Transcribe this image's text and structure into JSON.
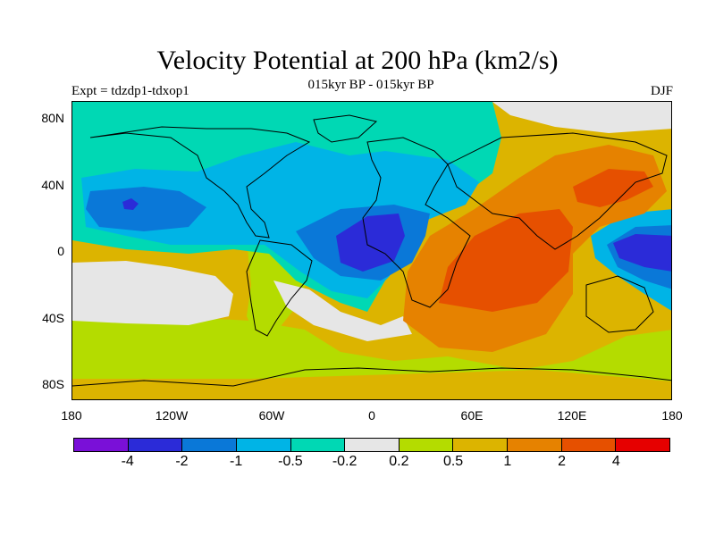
{
  "title": "Velocity Potential at 200 hPa (km2/s)",
  "subtitle": "015kyr BP - 015kyr BP",
  "experiment": "Expt = tdzdp1-tdxop1",
  "season": "DJF",
  "y_axis_labels": [
    "80N",
    "40N",
    "0",
    "40S",
    "80S"
  ],
  "x_axis_labels": [
    "180",
    "120W",
    "60W",
    "0",
    "60E",
    "120E",
    "180"
  ],
  "colorbar": {
    "colors": [
      "#7a10d8",
      "#2b2bd8",
      "#0a78d8",
      "#00b4e6",
      "#00d8b4",
      "#e6e6e6",
      "#b4dc00",
      "#dcb400",
      "#e68200",
      "#e65000",
      "#e60000"
    ],
    "labels": [
      "-4",
      "-2",
      "-1",
      "-0.5",
      "-0.2",
      "0.2",
      "0.5",
      "1",
      "2",
      "4"
    ]
  },
  "chart_data": {
    "type": "heatmap",
    "title": "Velocity Potential at 200 hPa (km2/s)",
    "subtitle": "015kyr BP - 015kyr BP",
    "projection": "cylindrical equidistant",
    "xlim": [
      -180,
      180
    ],
    "ylim": [
      -90,
      90
    ],
    "regions": [
      {
        "level": "-2 to -1",
        "lon": -15,
        "lat": 5,
        "desc": "tropical Atlantic / West Africa minimum"
      },
      {
        "level": "-2 to -1",
        "lon": 165,
        "lat": 5,
        "desc": "western tropical Pacific minimum"
      },
      {
        "level": "-2 to -1",
        "lon": -150,
        "lat": 28,
        "desc": "North Pacific minimum"
      },
      {
        "level": "-0.5 to -0.2",
        "lon": -100,
        "lat": 50,
        "desc": "North America / North Atlantic"
      },
      {
        "level": "1 to 2",
        "lon": 80,
        "lat": -10,
        "desc": "Indian Ocean maximum"
      },
      {
        "level": "1 to 2",
        "lon": 125,
        "lat": 35,
        "desc": "East Asia maximum"
      },
      {
        "level": "0.5 to 1",
        "lon": 60,
        "lat": -70,
        "desc": "Southern Ocean / Antarctica"
      },
      {
        "level": "0.2 to 0.5",
        "lon": -120,
        "lat": -50,
        "desc": "South Pacific"
      }
    ]
  }
}
